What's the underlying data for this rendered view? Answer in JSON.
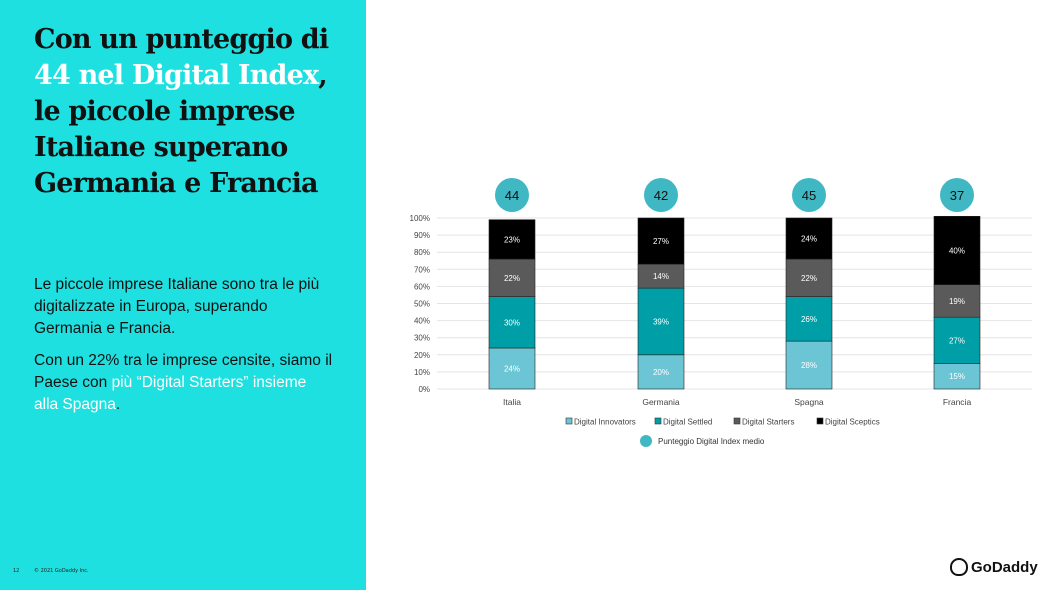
{
  "left_panel": {
    "title_parts": [
      "Con un punteggio di ",
      "44 nel Digital Index",
      ", le piccole imprese Italiane superano Germania e Francia"
    ],
    "paragraph1": "Le piccole imprese Italiane sono tra le più digitalizzate in Europa, superando Germania e Francia.",
    "paragraph2_parts": [
      "Con un 22% tra le imprese censite, siamo il Paese con ",
      "più “Digital Starters” insieme alla Spagna",
      "."
    ],
    "page_number": "12",
    "copyright": "© 2021 GoDaddy Inc."
  },
  "logo": "GoDaddy",
  "colors": {
    "panel": "#1fe0e0",
    "innovators": "#6cc5d4",
    "settled": "#009ea6",
    "starters": "#5a5a5a",
    "sceptics": "#000000",
    "index": "#3fb8c4"
  },
  "chart_data": {
    "type": "bar",
    "stacked": true,
    "categories": [
      "Italia",
      "Germania",
      "Spagna",
      "Francia"
    ],
    "series": [
      {
        "name": "Digital Innovators",
        "values": [
          24,
          20,
          28,
          15
        ]
      },
      {
        "name": "Digital Settled",
        "values": [
          30,
          39,
          26,
          27
        ]
      },
      {
        "name": "Digital Starters",
        "values": [
          22,
          14,
          22,
          19
        ]
      },
      {
        "name": "Digital Sceptics",
        "values": [
          23,
          27,
          24,
          40
        ]
      }
    ],
    "index_series": {
      "name": "Punteggio Digital Index medio",
      "values": [
        44,
        42,
        45,
        37
      ]
    },
    "yticks": [
      "0%",
      "10%",
      "20%",
      "30%",
      "40%",
      "50%",
      "60%",
      "70%",
      "80%",
      "90%",
      "100%"
    ],
    "ylim": [
      0,
      100
    ],
    "grid": true,
    "legend_position": "bottom"
  }
}
